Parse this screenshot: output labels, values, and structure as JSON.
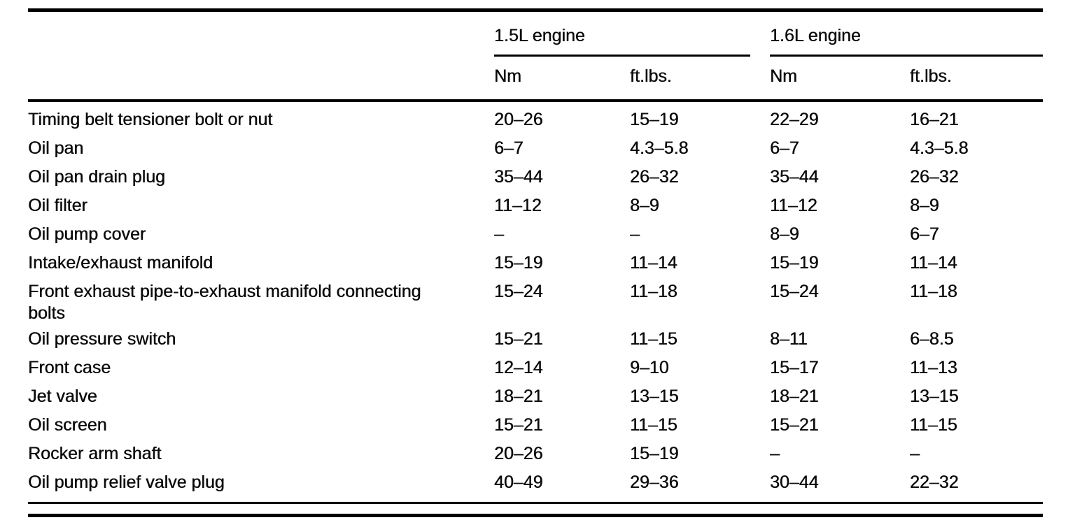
{
  "table": {
    "groups": [
      {
        "label": "1.5L engine",
        "columns": [
          "Nm",
          "ft.lbs."
        ]
      },
      {
        "label": "1.6L engine",
        "columns": [
          "Nm",
          "ft.lbs."
        ]
      }
    ],
    "rows": [
      {
        "label": "Timing belt tensioner bolt or nut",
        "values": [
          "20–26",
          "15–19",
          "22–29",
          "16–21"
        ]
      },
      {
        "label": "Oil pan",
        "values": [
          "6–7",
          "4.3–5.8",
          "6–7",
          "4.3–5.8"
        ]
      },
      {
        "label": "Oil pan drain plug",
        "values": [
          "35–44",
          "26–32",
          "35–44",
          "26–32"
        ]
      },
      {
        "label": "Oil filter",
        "values": [
          "11–12",
          "8–9",
          "11–12",
          "8–9"
        ]
      },
      {
        "label": "Oil pump cover",
        "values": [
          "–",
          "–",
          "8–9",
          "6–7"
        ]
      },
      {
        "label": "Intake/exhaust manifold",
        "values": [
          "15–19",
          "11–14",
          "15–19",
          "11–14"
        ]
      },
      {
        "label": "Front exhaust pipe-to-exhaust manifold connecting bolts",
        "values": [
          "15–24",
          "11–18",
          "15–24",
          "11–18"
        ]
      },
      {
        "label": "Oil pressure switch",
        "values": [
          "15–21",
          "11–15",
          "8–11",
          "6–8.5"
        ]
      },
      {
        "label": "Front case",
        "values": [
          "12–14",
          "9–10",
          "15–17",
          "11–13"
        ]
      },
      {
        "label": "Jet valve",
        "values": [
          "18–21",
          "13–15",
          "18–21",
          "13–15"
        ]
      },
      {
        "label": "Oil screen",
        "values": [
          "15–21",
          "11–15",
          "15–21",
          "11–15"
        ]
      },
      {
        "label": "Rocker arm shaft",
        "values": [
          "20–26",
          "15–19",
          "–",
          "–"
        ]
      },
      {
        "label": "Oil pump relief valve plug",
        "values": [
          "40–49",
          "29–36",
          "30–44",
          "22–32"
        ]
      }
    ]
  }
}
